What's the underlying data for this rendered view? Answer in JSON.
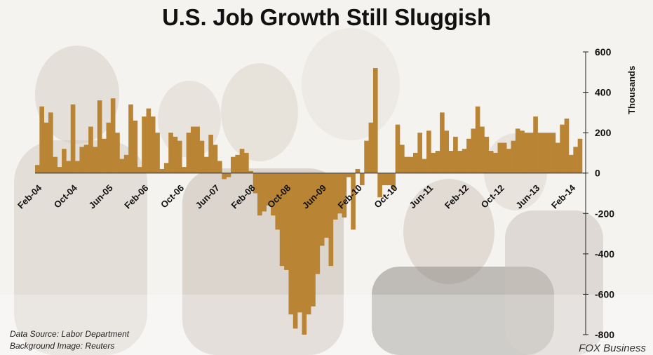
{
  "chart_data": {
    "type": "bar",
    "title": "U.S. Job Growth Still Sluggish",
    "ylabel": "Thousands",
    "ylim": [
      -800,
      600
    ],
    "yticks": [
      600,
      400,
      200,
      0,
      -200,
      -400,
      -600,
      -800
    ],
    "xtick_labels": [
      "Feb-04",
      "Oct-04",
      "Jun-05",
      "Feb-06",
      "Oct-06",
      "Jun-07",
      "Feb-08",
      "Oct-08",
      "Jun-09",
      "Feb-10",
      "Oct-10",
      "Jun-11",
      "Feb-12",
      "Oct-12",
      "Jun-13",
      "Feb-14"
    ],
    "bar_color": "#b98433",
    "series": [
      {
        "start": "2004-02",
        "end": "2014-03",
        "values": [
          40,
          330,
          250,
          300,
          80,
          30,
          120,
          60,
          340,
          60,
          130,
          140,
          230,
          130,
          360,
          170,
          250,
          370,
          200,
          70,
          90,
          340,
          260,
          30,
          280,
          320,
          280,
          200,
          20,
          50,
          200,
          180,
          160,
          30,
          200,
          230,
          230,
          160,
          80,
          190,
          140,
          60,
          -30,
          -20,
          80,
          90,
          120,
          100,
          10,
          -100,
          -210,
          -190,
          -160,
          -210,
          -280,
          -460,
          -480,
          -700,
          -770,
          -690,
          -800,
          -700,
          -660,
          -500,
          -360,
          -320,
          -460,
          -230,
          -200,
          -220,
          -20,
          -280,
          20,
          -60,
          160,
          250,
          520,
          -120,
          -60,
          -60,
          -80,
          240,
          140,
          80,
          80,
          100,
          200,
          70,
          210,
          100,
          110,
          300,
          210,
          110,
          180,
          110,
          120,
          170,
          220,
          330,
          230,
          180,
          110,
          100,
          150,
          150,
          120,
          160,
          220,
          210,
          200,
          200,
          280,
          200,
          200,
          200,
          200,
          150,
          240,
          270,
          90,
          130,
          170
        ]
      }
    ]
  },
  "footer": {
    "source": "Data Source: Labor Department",
    "image_credit": "Background Image: Reuters",
    "brand": "FOX Business"
  }
}
